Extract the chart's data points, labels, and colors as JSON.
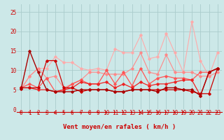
{
  "xlabel": "Vent moyen/en rafales ( km/h )",
  "bg_color": "#cce8e8",
  "grid_color": "#aacccc",
  "x_max": 24,
  "y_min": 0,
  "y_max": 27,
  "series": [
    {
      "color": "#ffaaaa",
      "lw": 0.8,
      "marker": "D",
      "ms": 1.8,
      "y": [
        5.2,
        8.5,
        10.5,
        10.5,
        13.5,
        12.0,
        12.0,
        10.5,
        10.0,
        10.5,
        10.0,
        15.5,
        14.5,
        14.5,
        19.0,
        13.0,
        13.5,
        19.5,
        14.5,
        9.5,
        22.5,
        12.5,
        8.5,
        14.5
      ]
    },
    {
      "color": "#ff8888",
      "lw": 0.8,
      "marker": "D",
      "ms": 1.8,
      "y": [
        5.2,
        8.5,
        10.5,
        8.0,
        8.5,
        5.5,
        6.5,
        7.5,
        9.5,
        9.5,
        9.0,
        9.0,
        9.0,
        10.5,
        14.5,
        9.5,
        9.0,
        14.0,
        9.5,
        9.5,
        9.5,
        8.5,
        8.5,
        9.5
      ]
    },
    {
      "color": "#ff5555",
      "lw": 0.9,
      "marker": "D",
      "ms": 1.8,
      "y": [
        5.5,
        6.5,
        5.5,
        8.0,
        4.5,
        5.0,
        6.5,
        7.5,
        6.5,
        6.5,
        10.0,
        6.5,
        9.5,
        6.0,
        10.5,
        6.5,
        8.0,
        8.5,
        8.0,
        8.0,
        7.5,
        9.5,
        9.5,
        10.5
      ]
    },
    {
      "color": "#ee2222",
      "lw": 0.9,
      "marker": "D",
      "ms": 1.8,
      "y": [
        5.5,
        5.5,
        5.0,
        5.0,
        4.5,
        5.0,
        5.5,
        7.0,
        6.5,
        6.5,
        7.0,
        5.5,
        6.5,
        5.5,
        7.0,
        6.0,
        6.5,
        6.5,
        7.0,
        7.5,
        7.5,
        3.5,
        9.5,
        10.5
      ]
    },
    {
      "color": "#cc0000",
      "lw": 0.9,
      "marker": "D",
      "ms": 1.8,
      "y": [
        5.5,
        5.5,
        5.5,
        12.5,
        12.5,
        5.5,
        5.5,
        4.5,
        5.0,
        5.0,
        5.0,
        4.5,
        4.5,
        5.0,
        5.0,
        5.0,
        5.0,
        5.0,
        5.0,
        5.0,
        4.5,
        4.0,
        4.0,
        10.5
      ]
    },
    {
      "color": "#aa0000",
      "lw": 1.0,
      "marker": "D",
      "ms": 1.8,
      "y": [
        5.2,
        15.0,
        9.5,
        5.0,
        4.5,
        4.5,
        4.5,
        5.0,
        5.0,
        5.0,
        5.0,
        4.5,
        4.5,
        5.0,
        5.0,
        5.0,
        4.5,
        5.5,
        5.5,
        5.0,
        5.0,
        3.5,
        9.5,
        10.5
      ]
    }
  ],
  "tick_color": "#cc0000",
  "label_color": "#cc0000",
  "axis_label_fontsize": 6.5,
  "tick_fontsize": 5.5
}
